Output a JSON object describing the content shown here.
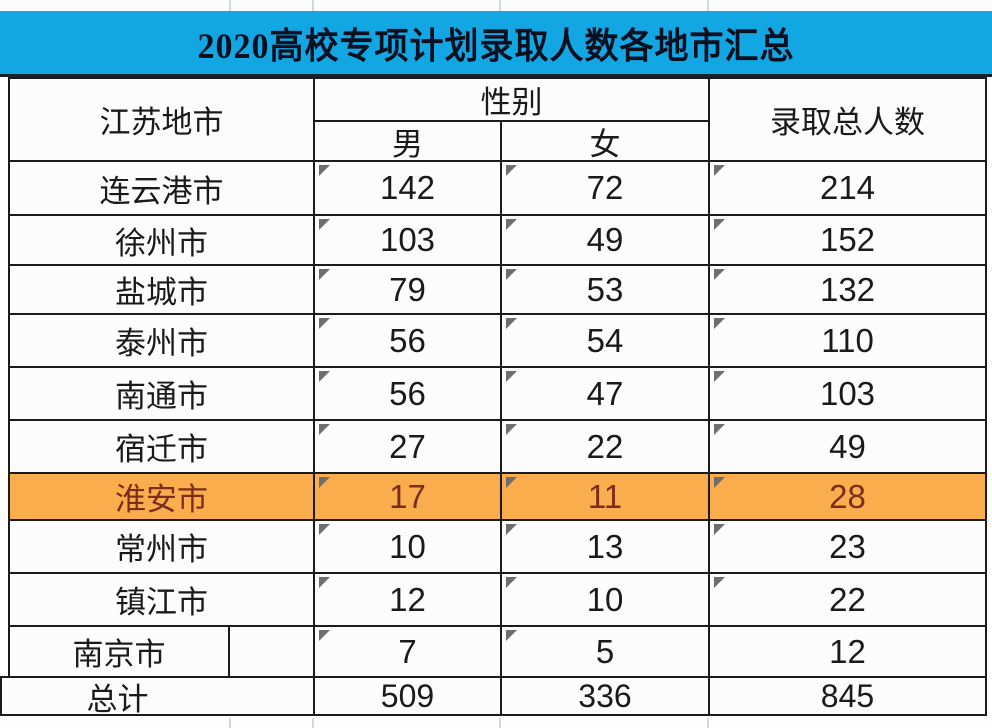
{
  "title": "2020高校专项计划录取人数各地市汇总",
  "table": {
    "headers": {
      "region": "江苏地市",
      "gender_group": "性别",
      "male": "男",
      "female": "女",
      "total": "录取总人数"
    },
    "rows": [
      {
        "name": "连云港市",
        "male": "142",
        "female": "72",
        "total": "214"
      },
      {
        "name": "徐州市",
        "male": "103",
        "female": "49",
        "total": "152"
      },
      {
        "name": "盐城市",
        "male": "79",
        "female": "53",
        "total": "132"
      },
      {
        "name": "泰州市",
        "male": "56",
        "female": "54",
        "total": "110"
      },
      {
        "name": "南通市",
        "male": "56",
        "female": "47",
        "total": "103"
      },
      {
        "name": "宿迁市",
        "male": "27",
        "female": "22",
        "total": "49"
      },
      {
        "name": "淮安市",
        "male": "17",
        "female": "11",
        "total": "28",
        "highlight": true
      },
      {
        "name": "常州市",
        "male": "10",
        "female": "13",
        "total": "23"
      },
      {
        "name": "镇江市",
        "male": "12",
        "female": "10",
        "total": "22"
      },
      {
        "name": "南京市",
        "male": "7",
        "female": "5",
        "total": "12",
        "split_first_cell": true,
        "flags": {
          "male": true,
          "female": true,
          "total": false
        }
      }
    ],
    "total_row": {
      "label": "总计",
      "male": "509",
      "female": "336",
      "total": "845"
    }
  },
  "icons": {
    "cell_corner_flag": "comment-flag-icon"
  },
  "colors": {
    "banner": "#12a7e3",
    "hl-bg": "#faad4d",
    "hl-text": "#7c2d1c",
    "border": "#1b1b1b",
    "flag": "#6e6e6e"
  }
}
